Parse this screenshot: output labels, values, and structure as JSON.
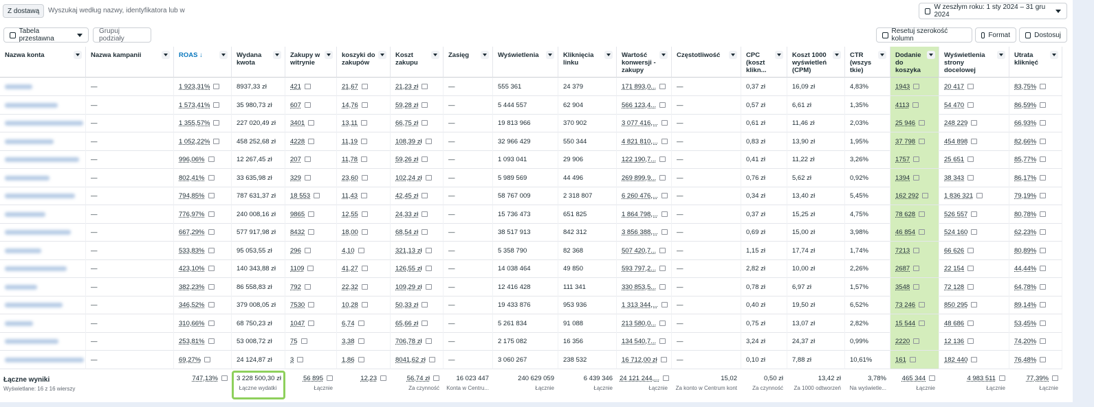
{
  "filters": {
    "chip": "Z dostawą",
    "search_placeholder": "Wyszukaj według nazwy, identyfikatora lub w",
    "date_range": "W zeszłym roku: 1 sty 2024 – 31 gru 2024"
  },
  "toolbar": {
    "view": "Tabela przestawna",
    "group": "Grupuj podziały",
    "reset": "Resetuj szerokość kolumn",
    "format": "Format",
    "customize": "Dostosuj"
  },
  "table": {
    "columns": [
      "Nazwa konta",
      "Nazwa kampanii",
      "ROAS ↓",
      "Wydana kwota",
      "Zakupy w witrynie",
      "koszyki do zakupów",
      "Koszt zakupu",
      "Zasięg",
      "Wyświetlenia",
      "Kliknięcia linku",
      "Wartość konwersji - zakupy",
      "Częstotliwość",
      "CPC (koszt klikn...",
      "Koszt 1000 wyświetleń (CPM)",
      "CTR (wszys tkie)",
      "Dodanie do koszyka",
      "Wyświetlenia strony docelowej",
      "Utrata kliknięć"
    ],
    "rows": [
      [
        "—",
        "1 923,31%",
        "8937,33 zł",
        "421",
        "21,67",
        "21,23 zł",
        "—",
        "555 361",
        "24 379",
        "171 893,0...",
        "—",
        "0,37 zł",
        "16,09 zł",
        "4,83%",
        "1943",
        "20 417",
        "83,75%"
      ],
      [
        "—",
        "1 573,41%",
        "35 980,73 zł",
        "607",
        "14,76",
        "59,28 zł",
        "—",
        "5 444 557",
        "62 904",
        "566 123,4...",
        "—",
        "0,57 zł",
        "6,61 zł",
        "1,35%",
        "4113",
        "54 470",
        "86,59%"
      ],
      [
        "—",
        "1 355,57%",
        "227 020,49 zł",
        "3401",
        "13,11",
        "66,75 zł",
        "—",
        "19 813 966",
        "370 902",
        "3 077 416,...",
        "—",
        "0,61 zł",
        "11,46 zł",
        "2,03%",
        "25 946",
        "248 229",
        "66,93%"
      ],
      [
        "—",
        "1 052,22%",
        "458 252,68 zł",
        "4228",
        "11,19",
        "108,39 zł",
        "—",
        "32 966 429",
        "550 344",
        "4 821 810,...",
        "—",
        "0,83 zł",
        "13,90 zł",
        "1,95%",
        "37 798",
        "454 898",
        "82,66%"
      ],
      [
        "—",
        "996,06%",
        "12 267,45 zł",
        "207",
        "11,78",
        "59,26 zł",
        "—",
        "1 093 041",
        "29 906",
        "122 190,7...",
        "—",
        "0,41 zł",
        "11,22 zł",
        "3,26%",
        "1757",
        "25 651",
        "85,77%"
      ],
      [
        "—",
        "802,41%",
        "33 635,98 zł",
        "329",
        "23,60",
        "102,24 zł",
        "—",
        "5 989 569",
        "44 496",
        "269 899,9...",
        "—",
        "0,76 zł",
        "5,62 zł",
        "0,92%",
        "1394",
        "38 343",
        "86,17%"
      ],
      [
        "—",
        "794,85%",
        "787 631,37 zł",
        "18 553",
        "11,43",
        "42,45 zł",
        "—",
        "58 767 009",
        "2 318 807",
        "6 260 476,...",
        "—",
        "0,34 zł",
        "13,40 zł",
        "5,45%",
        "162 292",
        "1 836 321",
        "79,19%"
      ],
      [
        "—",
        "776,97%",
        "240 008,16 zł",
        "9865",
        "12,55",
        "24,33 zł",
        "—",
        "15 736 473",
        "651 825",
        "1 864 798,...",
        "—",
        "0,37 zł",
        "15,25 zł",
        "4,75%",
        "78 628",
        "526 557",
        "80,78%"
      ],
      [
        "—",
        "667,29%",
        "577 917,98 zł",
        "8432",
        "18,00",
        "68,54 zł",
        "—",
        "38 517 913",
        "842 312",
        "3 856 388,...",
        "—",
        "0,69 zł",
        "15,00 zł",
        "3,98%",
        "46 854",
        "524 160",
        "62,23%"
      ],
      [
        "—",
        "533,83%",
        "95 053,55 zł",
        "296",
        "4,10",
        "321,13 zł",
        "—",
        "5 358 790",
        "82 368",
        "507 420,7...",
        "—",
        "1,15 zł",
        "17,74 zł",
        "1,74%",
        "7213",
        "66 626",
        "80,89%"
      ],
      [
        "—",
        "423,10%",
        "140 343,88 zł",
        "1109",
        "41,27",
        "126,55 zł",
        "—",
        "14 038 464",
        "49 850",
        "593 797,2...",
        "—",
        "2,82 zł",
        "10,00 zł",
        "2,26%",
        "2687",
        "22 154",
        "44,44%"
      ],
      [
        "—",
        "382,23%",
        "86 558,83 zł",
        "792",
        "22,32",
        "109,29 zł",
        "—",
        "12 416 428",
        "111 341",
        "330 853,5...",
        "—",
        "0,78 zł",
        "6,97 zł",
        "1,57%",
        "3548",
        "72 128",
        "64,78%"
      ],
      [
        "—",
        "346,52%",
        "379 008,05 zł",
        "7530",
        "10,28",
        "50,33 zł",
        "—",
        "19 433 876",
        "953 936",
        "1 313 344,...",
        "—",
        "0,40 zł",
        "19,50 zł",
        "6,52%",
        "73 246",
        "850 295",
        "89,14%"
      ],
      [
        "—",
        "310,66%",
        "68 750,23 zł",
        "1047",
        "6,74",
        "65,66 zł",
        "—",
        "5 261 834",
        "91 088",
        "213 580,0...",
        "—",
        "0,75 zł",
        "13,07 zł",
        "2,82%",
        "15 544",
        "48 686",
        "53,45%"
      ],
      [
        "—",
        "253,81%",
        "53 008,72 zł",
        "75",
        "3,38",
        "706,78 zł",
        "—",
        "2 175 082",
        "16 356",
        "134 540,7...",
        "—",
        "3,24 zł",
        "24,37 zł",
        "0,99%",
        "2220",
        "12 136",
        "74,20%"
      ],
      [
        "—",
        "69,27%",
        "24 124,87 zł",
        "3",
        "1,86",
        "8041,62 zł",
        "—",
        "3 060 267",
        "238 532",
        "16 712,00 zł",
        "—",
        "0,10 zł",
        "7,88 zł",
        "10,61%",
        "161",
        "182 440",
        "76,48%"
      ]
    ],
    "totals": {
      "label": "Łączne wyniki",
      "sublabel": "Wyświetlane: 16 z 16 wierszy",
      "cells": [
        null,
        {
          "value": "747,13%"
        },
        {
          "value": "3 228 500,30 zł",
          "caption": "Łączne wydatki"
        },
        {
          "value": "56 895",
          "caption": "Łącznie"
        },
        {
          "value": "12,23"
        },
        {
          "value": "56,74 zł",
          "caption": "Za czynność"
        },
        {
          "value": "16 023 447",
          "caption": "Konta w Centru..."
        },
        {
          "value": "240 629 059",
          "caption": "Łącznie"
        },
        {
          "value": "6 439 346",
          "caption": "Łącznie"
        },
        {
          "value": "24 121 244,...",
          "caption": "Łącznie"
        },
        {
          "value": "15,02",
          "caption": "Za konto w Centrum kont"
        },
        {
          "value": "0,50 zł",
          "caption": "Za czynność"
        },
        {
          "value": "13,42 zł",
          "caption": "Za 1000 odtworzeń"
        },
        {
          "value": "3,78%",
          "caption": "Na wyświetle..."
        },
        {
          "value": "465 344",
          "caption": "Łącznie"
        },
        {
          "value": "4 983 511",
          "caption": "Łącznie"
        },
        {
          "value": "77,39%",
          "caption": "Łącznie"
        }
      ]
    }
  }
}
